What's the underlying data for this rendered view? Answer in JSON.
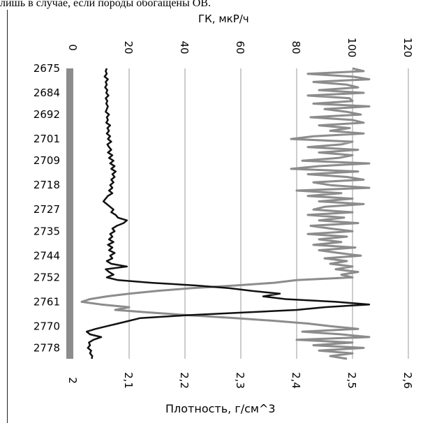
{
  "caption": "лишь в случае, если породы обогащены ОВ.",
  "chart_data": {
    "type": "line",
    "title": "",
    "y_axis": {
      "label": "",
      "ticks": [
        "2675",
        "2684",
        "2692",
        "2701",
        "2709",
        "2718",
        "2727",
        "2735",
        "2744",
        "2752",
        "2761",
        "2770",
        "2778"
      ],
      "range": [
        2675,
        2782
      ],
      "reversed": true
    },
    "top_axis": {
      "label": "ГК, мкР/ч",
      "ticks": [
        "0",
        "20",
        "40",
        "60",
        "80",
        "100",
        "120"
      ],
      "range": [
        0,
        120
      ]
    },
    "bottom_axis": {
      "label": "Плотность, г/см^3",
      "ticks": [
        "2",
        "2,1",
        "2,2",
        "2,3",
        "2,4",
        "2,5",
        "2,6"
      ],
      "range": [
        2.0,
        2.6
      ]
    },
    "grid": true,
    "colors": {
      "gk": "#8c8c8c",
      "density": "#111111",
      "grid": "#9a9a9a",
      "axis_band": "#8c8c8c"
    },
    "series": [
      {
        "name": "",
        "axis": "top",
        "points": [
          [
            2675,
            100
          ],
          [
            2676,
            104
          ],
          [
            2677,
            84
          ],
          [
            2678,
            100
          ],
          [
            2679,
            106
          ],
          [
            2680,
            86
          ],
          [
            2681,
            98
          ],
          [
            2682,
            102
          ],
          [
            2683,
            88
          ],
          [
            2684,
            104
          ],
          [
            2685,
            84
          ],
          [
            2686,
            99
          ],
          [
            2687,
            100
          ],
          [
            2688,
            86
          ],
          [
            2689,
            106
          ],
          [
            2690,
            90
          ],
          [
            2691,
            98
          ],
          [
            2692,
            103
          ],
          [
            2693,
            85
          ],
          [
            2694,
            100
          ],
          [
            2695,
            104
          ],
          [
            2696,
            88
          ],
          [
            2697,
            99
          ],
          [
            2698,
            92
          ],
          [
            2699,
            104
          ],
          [
            2700,
            86
          ],
          [
            2701,
            78
          ],
          [
            2702,
            100
          ],
          [
            2703,
            96
          ],
          [
            2704,
            84
          ],
          [
            2705,
            102
          ],
          [
            2706,
            88
          ],
          [
            2707,
            100
          ],
          [
            2708,
            95
          ],
          [
            2709,
            82
          ],
          [
            2710,
            106
          ],
          [
            2711,
            88
          ],
          [
            2712,
            78
          ],
          [
            2713,
            102
          ],
          [
            2714,
            84
          ],
          [
            2715,
            98
          ],
          [
            2716,
            104
          ],
          [
            2717,
            86
          ],
          [
            2718,
            92
          ],
          [
            2719,
            106
          ],
          [
            2720,
            80
          ],
          [
            2721,
            96
          ],
          [
            2722,
            84
          ],
          [
            2723,
            100
          ],
          [
            2724,
            88
          ],
          [
            2725,
            104
          ],
          [
            2726,
            90
          ],
          [
            2727,
            86
          ],
          [
            2728,
            100
          ],
          [
            2729,
            84
          ],
          [
            2730,
            97
          ],
          [
            2731,
            88
          ],
          [
            2732,
            102
          ],
          [
            2733,
            85
          ],
          [
            2734,
            92
          ],
          [
            2735,
            100
          ],
          [
            2736,
            84
          ],
          [
            2737,
            98
          ],
          [
            2738,
            88
          ],
          [
            2739,
            96
          ],
          [
            2740,
            86
          ],
          [
            2741,
            101
          ],
          [
            2742,
            88
          ],
          [
            2743,
            95
          ],
          [
            2744,
            103
          ],
          [
            2745,
            90
          ],
          [
            2746,
            98
          ],
          [
            2747,
            92
          ],
          [
            2748,
            100
          ],
          [
            2749,
            94
          ],
          [
            2750,
            102
          ],
          [
            2751,
            96
          ],
          [
            2752,
            100
          ],
          [
            2753,
            80
          ],
          [
            2754,
            72
          ],
          [
            2755,
            58
          ],
          [
            2756,
            42
          ],
          [
            2757,
            30
          ],
          [
            2758,
            20
          ],
          [
            2759,
            12
          ],
          [
            2760,
            6
          ],
          [
            2761,
            3
          ],
          [
            2762,
            10
          ],
          [
            2763,
            20
          ],
          [
            2764,
            15
          ],
          [
            2765,
            28
          ],
          [
            2766,
            42
          ],
          [
            2767,
            58
          ],
          [
            2768,
            72
          ],
          [
            2769,
            84
          ],
          [
            2770,
            92
          ],
          [
            2771,
            102
          ],
          [
            2772,
            82
          ],
          [
            2773,
            96
          ],
          [
            2774,
            106
          ],
          [
            2775,
            80
          ],
          [
            2776,
            100
          ],
          [
            2777,
            86
          ],
          [
            2778,
            104
          ],
          [
            2779,
            88
          ],
          [
            2780,
            100
          ],
          [
            2781,
            92
          ],
          [
            2782,
            98
          ]
        ]
      },
      {
        "name": "",
        "axis": "bottom",
        "points": [
          [
            2675,
            2.06
          ],
          [
            2676,
            2.058
          ],
          [
            2677,
            2.06
          ],
          [
            2678,
            2.056
          ],
          [
            2679,
            2.062
          ],
          [
            2680,
            2.058
          ],
          [
            2681,
            2.06
          ],
          [
            2682,
            2.057
          ],
          [
            2683,
            2.061
          ],
          [
            2684,
            2.059
          ],
          [
            2685,
            2.063
          ],
          [
            2686,
            2.058
          ],
          [
            2687,
            2.061
          ],
          [
            2688,
            2.059
          ],
          [
            2689,
            2.062
          ],
          [
            2690,
            2.06
          ],
          [
            2691,
            2.058
          ],
          [
            2692,
            2.064
          ],
          [
            2693,
            2.06
          ],
          [
            2694,
            2.062
          ],
          [
            2695,
            2.059
          ],
          [
            2696,
            2.066
          ],
          [
            2697,
            2.061
          ],
          [
            2698,
            2.064
          ],
          [
            2699,
            2.06
          ],
          [
            2700,
            2.066
          ],
          [
            2701,
            2.062
          ],
          [
            2702,
            2.068
          ],
          [
            2703,
            2.061
          ],
          [
            2704,
            2.064
          ],
          [
            2705,
            2.068
          ],
          [
            2706,
            2.062
          ],
          [
            2707,
            2.07
          ],
          [
            2708,
            2.064
          ],
          [
            2709,
            2.072
          ],
          [
            2710,
            2.066
          ],
          [
            2711,
            2.074
          ],
          [
            2712,
            2.068
          ],
          [
            2713,
            2.076
          ],
          [
            2714,
            2.07
          ],
          [
            2715,
            2.074
          ],
          [
            2716,
            2.068
          ],
          [
            2717,
            2.072
          ],
          [
            2718,
            2.066
          ],
          [
            2719,
            2.07
          ],
          [
            2720,
            2.064
          ],
          [
            2721,
            2.07
          ],
          [
            2722,
            2.062
          ],
          [
            2723,
            2.058
          ],
          [
            2724,
            2.054
          ],
          [
            2725,
            2.06
          ],
          [
            2726,
            2.066
          ],
          [
            2727,
            2.072
          ],
          [
            2728,
            2.068
          ],
          [
            2729,
            2.076
          ],
          [
            2730,
            2.08
          ],
          [
            2731,
            2.096
          ],
          [
            2732,
            2.09
          ],
          [
            2733,
            2.078
          ],
          [
            2734,
            2.07
          ],
          [
            2735,
            2.074
          ],
          [
            2736,
            2.066
          ],
          [
            2737,
            2.07
          ],
          [
            2738,
            2.064
          ],
          [
            2739,
            2.072
          ],
          [
            2740,
            2.062
          ],
          [
            2741,
            2.07
          ],
          [
            2742,
            2.064
          ],
          [
            2743,
            2.074
          ],
          [
            2744,
            2.066
          ],
          [
            2745,
            2.07
          ],
          [
            2746,
            2.06
          ],
          [
            2747,
            2.068
          ],
          [
            2748,
            2.096
          ],
          [
            2749,
            2.058
          ],
          [
            2750,
            2.064
          ],
          [
            2751,
            2.072
          ],
          [
            2752,
            2.06
          ],
          [
            2753,
            2.08
          ],
          [
            2754,
            2.14
          ],
          [
            2755,
            2.22
          ],
          [
            2756,
            2.28
          ],
          [
            2757,
            2.32
          ],
          [
            2758,
            2.37
          ],
          [
            2759,
            2.34
          ],
          [
            2760,
            2.38
          ],
          [
            2761,
            2.47
          ],
          [
            2762,
            2.53
          ],
          [
            2763,
            2.45
          ],
          [
            2764,
            2.4
          ],
          [
            2765,
            2.3
          ],
          [
            2766,
            2.2
          ],
          [
            2767,
            2.12
          ],
          [
            2768,
            2.1
          ],
          [
            2769,
            2.08
          ],
          [
            2770,
            2.06
          ],
          [
            2771,
            2.04
          ],
          [
            2772,
            2.024
          ],
          [
            2773,
            2.03
          ],
          [
            2774,
            2.05
          ],
          [
            2775,
            2.036
          ],
          [
            2776,
            2.028
          ],
          [
            2777,
            2.03
          ],
          [
            2778,
            2.026
          ],
          [
            2779,
            2.032
          ],
          [
            2780,
            2.03
          ],
          [
            2781,
            2.034
          ],
          [
            2782,
            2.033
          ]
        ]
      }
    ]
  }
}
